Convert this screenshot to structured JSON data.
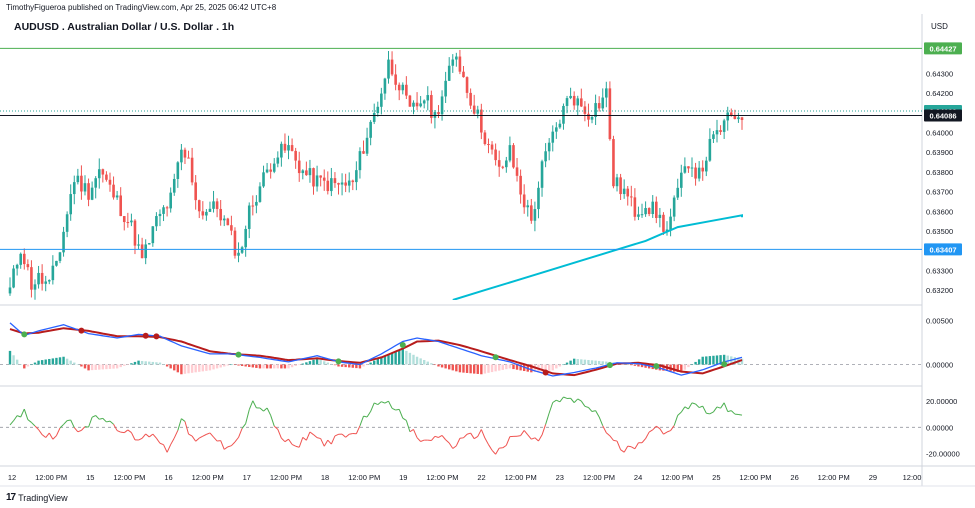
{
  "header": {
    "attribution": "TimothyFigueroa published on TradingView.com, Apr 25, 2025 06:42 UTC+8",
    "title": "AUDUSD . Australian Dollar / U.S. Dollar . 1h",
    "currency": "USD"
  },
  "footer": {
    "logo_text": "TradingView",
    "logo_mark": "17"
  },
  "colors": {
    "up": "#26a69a",
    "down": "#ef5350",
    "ma": "#00bcd4",
    "green_line": "#4caf50",
    "price_line": "#131722",
    "support_line": "#2196f3",
    "dotted_line": "#26a69a",
    "macd_fast": "#2962ff",
    "macd_signal": "#b71c1c",
    "macd_cross_up": "#4caf50",
    "macd_cross_down": "#b71c1c"
  },
  "chart_data": [
    {
      "pane": "price",
      "type": "candlestick",
      "ylim": [
        0.6315,
        0.6452
      ],
      "y_ticks": [
        "0.64300",
        "0.64200",
        "0.64000",
        "0.63900",
        "0.63800",
        "0.63700",
        "0.63600",
        "0.63500",
        "0.63300",
        "0.63200"
      ],
      "y_tick_values": [
        0.643,
        0.642,
        0.64,
        0.639,
        0.638,
        0.637,
        0.636,
        0.635,
        0.633,
        0.632
      ],
      "hidden_tick": "0.64400",
      "price_labels": [
        {
          "text": "0.64427",
          "value": 0.64427,
          "kind": "resistance"
        },
        {
          "text": "0.64109",
          "value": 0.64109,
          "kind": "dotted"
        },
        {
          "text": "0.64086",
          "value": 0.64086,
          "kind": "current"
        },
        {
          "text": "0.63407",
          "value": 0.63407,
          "kind": "support"
        }
      ],
      "x_labels": [
        "12",
        "12:00 PM",
        "15",
        "12:00 PM",
        "16",
        "12:00 PM",
        "17",
        "12:00 PM",
        "18",
        "12:00 PM",
        "19",
        "12:00 PM",
        "22",
        "12:00 PM",
        "23",
        "12:00 PM",
        "24",
        "12:00 PM",
        "25",
        "12:00 PM",
        "26",
        "12:00 PM",
        "29",
        "12:00"
      ],
      "keypoints": [
        [
          0,
          0.632
        ],
        [
          3,
          0.6342
        ],
        [
          6,
          0.6323
        ],
        [
          8,
          0.6326
        ],
        [
          11,
          0.6322
        ],
        [
          14,
          0.6341
        ],
        [
          18,
          0.6377
        ],
        [
          22,
          0.637
        ],
        [
          25,
          0.6381
        ],
        [
          30,
          0.6365
        ],
        [
          34,
          0.6352
        ],
        [
          37,
          0.6335
        ],
        [
          41,
          0.6355
        ],
        [
          45,
          0.6366
        ],
        [
          48,
          0.639
        ],
        [
          50,
          0.6385
        ],
        [
          53,
          0.636
        ],
        [
          58,
          0.6362
        ],
        [
          61,
          0.6351
        ],
        [
          64,
          0.6337
        ],
        [
          67,
          0.636
        ],
        [
          70,
          0.6373
        ],
        [
          74,
          0.6388
        ],
        [
          78,
          0.6392
        ],
        [
          82,
          0.638
        ],
        [
          86,
          0.6375
        ],
        [
          92,
          0.6373
        ],
        [
          96,
          0.6374
        ],
        [
          99,
          0.6393
        ],
        [
          103,
          0.6415
        ],
        [
          106,
          0.6435
        ],
        [
          109,
          0.6425
        ],
        [
          112,
          0.641
        ],
        [
          116,
          0.6418
        ],
        [
          119,
          0.6408
        ],
        [
          122,
          0.6425
        ],
        [
          125,
          0.644
        ],
        [
          128,
          0.6422
        ],
        [
          131,
          0.6408
        ],
        [
          134,
          0.6393
        ],
        [
          137,
          0.638
        ],
        [
          140,
          0.639
        ],
        [
          143,
          0.637
        ],
        [
          146,
          0.6355
        ],
        [
          149,
          0.6382
        ],
        [
          151,
          0.6393
        ],
        [
          154,
          0.6407
        ],
        [
          157,
          0.642
        ],
        [
          159,
          0.6415
        ],
        [
          162,
          0.641
        ],
        [
          165,
          0.6415
        ],
        [
          167,
          0.642
        ],
        [
          169,
          0.6375
        ],
        [
          172,
          0.637
        ],
        [
          175,
          0.636
        ],
        [
          178,
          0.6364
        ],
        [
          181,
          0.6359
        ],
        [
          184,
          0.635
        ],
        [
          187,
          0.637
        ],
        [
          190,
          0.6386
        ],
        [
          193,
          0.6378
        ],
        [
          196,
          0.6393
        ],
        [
          199,
          0.6402
        ],
        [
          202,
          0.6408
        ],
        [
          205,
          0.641
        ]
      ],
      "ma_series": [
        [
          0.6315,
          0.6317
        ],
        [
          0.632,
          0.6322
        ],
        [
          0.6325,
          0.6328
        ],
        [
          0.633,
          0.6334
        ],
        [
          0.6335,
          0.6339
        ],
        [
          0.634,
          0.6343
        ],
        [
          0.6345,
          0.6349
        ],
        [
          0.6352,
          0.6352
        ],
        [
          0.6355,
          0.6353
        ],
        [
          0.6358,
          0.6357
        ]
      ],
      "ma_start_index": 124
    },
    {
      "pane": "macd",
      "type": "line",
      "ylim": [
        -0.0022,
        0.0065
      ],
      "y_ticks": [
        "0.00500",
        "0.00000"
      ],
      "y_tick_values": [
        0.005,
        0.0
      ],
      "fast_keypoints": [
        [
          0,
          0.0047
        ],
        [
          4,
          0.0033
        ],
        [
          8,
          0.0038
        ],
        [
          15,
          0.0045
        ],
        [
          22,
          0.0035
        ],
        [
          30,
          0.003
        ],
        [
          36,
          0.0034
        ],
        [
          42,
          0.0032
        ],
        [
          48,
          0.0021
        ],
        [
          56,
          0.0012
        ],
        [
          62,
          0.0012
        ],
        [
          70,
          0.0008
        ],
        [
          78,
          0.0003
        ],
        [
          86,
          0.001
        ],
        [
          92,
          0.0003
        ],
        [
          98,
          0.0
        ],
        [
          104,
          0.0012
        ],
        [
          110,
          0.0026
        ],
        [
          114,
          0.003
        ],
        [
          120,
          0.0026
        ],
        [
          126,
          0.0018
        ],
        [
          132,
          0.001
        ],
        [
          140,
          0.0003
        ],
        [
          146,
          -0.0006
        ],
        [
          152,
          -0.0013
        ],
        [
          158,
          -0.0009
        ],
        [
          164,
          -0.0004
        ],
        [
          170,
          0.0002
        ],
        [
          176,
          0.0001
        ],
        [
          182,
          -0.0004
        ],
        [
          188,
          -0.0012
        ],
        [
          194,
          -0.0006
        ],
        [
          200,
          0.0003
        ],
        [
          205,
          0.0008
        ]
      ],
      "signal_keypoints": [
        [
          0,
          0.004
        ],
        [
          4,
          0.0035
        ],
        [
          8,
          0.0036
        ],
        [
          15,
          0.0041
        ],
        [
          22,
          0.0038
        ],
        [
          30,
          0.0032
        ],
        [
          36,
          0.0032
        ],
        [
          42,
          0.0031
        ],
        [
          48,
          0.0026
        ],
        [
          56,
          0.0015
        ],
        [
          62,
          0.0012
        ],
        [
          70,
          0.001
        ],
        [
          78,
          0.0005
        ],
        [
          86,
          0.0007
        ],
        [
          92,
          0.0004
        ],
        [
          98,
          0.0002
        ],
        [
          104,
          0.0008
        ],
        [
          110,
          0.0018
        ],
        [
          114,
          0.0026
        ],
        [
          120,
          0.0027
        ],
        [
          126,
          0.0022
        ],
        [
          132,
          0.0015
        ],
        [
          140,
          0.0005
        ],
        [
          146,
          -0.0002
        ],
        [
          152,
          -0.001
        ],
        [
          158,
          -0.0012
        ],
        [
          164,
          -0.0006
        ],
        [
          170,
          0.0001
        ],
        [
          176,
          0.0002
        ],
        [
          182,
          -0.0001
        ],
        [
          188,
          -0.0008
        ],
        [
          194,
          -0.001
        ],
        [
          200,
          -0.0002
        ],
        [
          205,
          0.0005
        ]
      ],
      "cross_points": [
        [
          4,
          "up"
        ],
        [
          20,
          "down"
        ],
        [
          38,
          "down"
        ],
        [
          41,
          "down"
        ],
        [
          64,
          "up"
        ],
        [
          92,
          "up"
        ],
        [
          110,
          "up"
        ],
        [
          136,
          "up"
        ],
        [
          150,
          "down"
        ],
        [
          168,
          "up"
        ],
        [
          181,
          "up"
        ],
        [
          200,
          "up"
        ]
      ]
    },
    {
      "pane": "oscillator",
      "type": "line",
      "ylim": [
        -28,
        30
      ],
      "y_ticks": [
        "20.00000",
        "0.00000",
        "-20.00000"
      ],
      "y_tick_values": [
        20,
        0,
        -20
      ],
      "keypoints": [
        [
          0,
          0
        ],
        [
          4,
          12
        ],
        [
          8,
          -2
        ],
        [
          12,
          -8
        ],
        [
          16,
          8
        ],
        [
          20,
          -5
        ],
        [
          24,
          10
        ],
        [
          28,
          4
        ],
        [
          32,
          -3
        ],
        [
          36,
          -10
        ],
        [
          40,
          -4
        ],
        [
          44,
          -18
        ],
        [
          48,
          6
        ],
        [
          52,
          -12
        ],
        [
          56,
          -5
        ],
        [
          60,
          -15
        ],
        [
          64,
          -8
        ],
        [
          68,
          18
        ],
        [
          72,
          12
        ],
        [
          76,
          -8
        ],
        [
          80,
          -16
        ],
        [
          84,
          -4
        ],
        [
          88,
          -12
        ],
        [
          92,
          -8
        ],
        [
          96,
          -6
        ],
        [
          100,
          10
        ],
        [
          104,
          22
        ],
        [
          108,
          16
        ],
        [
          112,
          -2
        ],
        [
          116,
          -12
        ],
        [
          120,
          -6
        ],
        [
          124,
          -14
        ],
        [
          128,
          -8
        ],
        [
          132,
          -4
        ],
        [
          136,
          -20
        ],
        [
          140,
          -10
        ],
        [
          144,
          -4
        ],
        [
          148,
          -12
        ],
        [
          152,
          18
        ],
        [
          156,
          22
        ],
        [
          160,
          18
        ],
        [
          164,
          12
        ],
        [
          168,
          -8
        ],
        [
          172,
          -18
        ],
        [
          176,
          -12
        ],
        [
          180,
          0
        ],
        [
          184,
          -6
        ],
        [
          188,
          14
        ],
        [
          192,
          18
        ],
        [
          196,
          12
        ],
        [
          200,
          16
        ],
        [
          205,
          10
        ]
      ]
    }
  ]
}
